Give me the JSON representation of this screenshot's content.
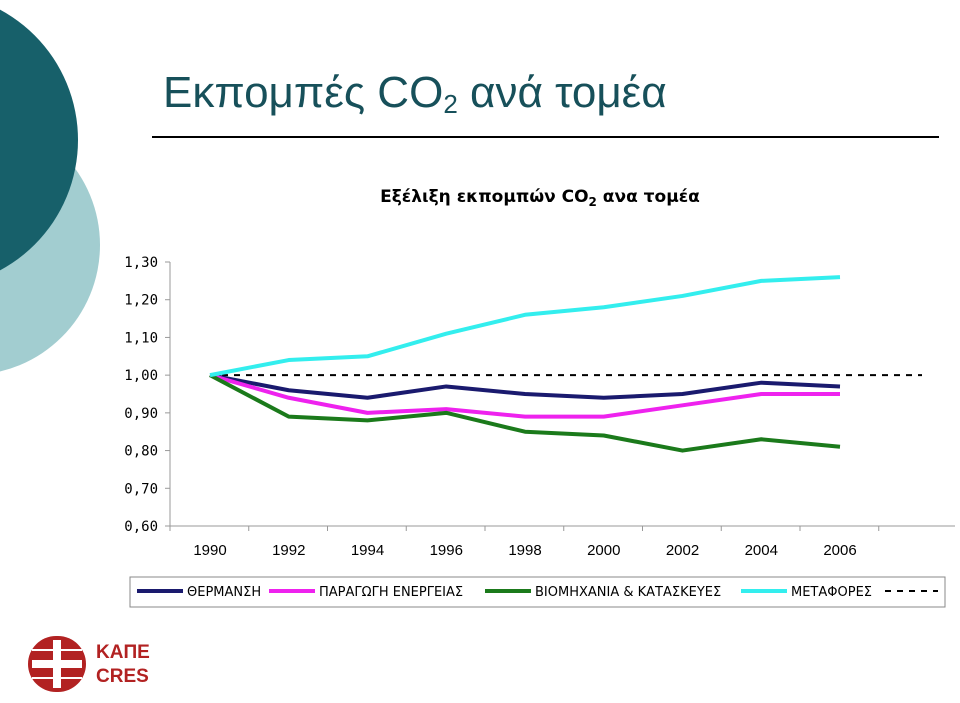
{
  "slide": {
    "title_main": "Εκπομπές CO",
    "title_sub": "2",
    "title_rest": " ανά τομέα"
  },
  "chart_data": {
    "type": "line",
    "title": "Εξέλιξη εκπομπών CO",
    "title_sub": "2",
    "title_rest": " ανα τομέα",
    "categories": [
      "1990",
      "1992",
      "1994",
      "1996",
      "1998",
      "2000",
      "2002",
      "2004",
      "2006"
    ],
    "ylim": [
      0.6,
      1.3
    ],
    "yticks": [
      "0,60",
      "0,70",
      "0,80",
      "0,90",
      "1,00",
      "1,10",
      "1,20",
      "1,30"
    ],
    "grid": false,
    "legend_position": "bottom",
    "series": [
      {
        "name": "ΘΕΡΜΑΝΣΗ",
        "color": "#1a1a6e",
        "style": "solid",
        "values": [
          1.0,
          0.96,
          0.94,
          0.97,
          0.95,
          0.94,
          0.95,
          0.98,
          0.97
        ]
      },
      {
        "name": "ΠΑΡΑΓΩΓΗ ΕΝΕΡΓΕΙΑΣ",
        "color": "#ee22ee",
        "style": "solid",
        "values": [
          1.0,
          0.94,
          0.9,
          0.91,
          0.89,
          0.89,
          0.92,
          0.95,
          0.95
        ]
      },
      {
        "name": "ΒΙΟΜΗΧΑΝΙΑ & ΚΑΤΑΣΚΕΥΕΣ",
        "color": "#1b7a1b",
        "style": "solid",
        "values": [
          1.0,
          0.89,
          0.88,
          0.9,
          0.85,
          0.84,
          0.8,
          0.83,
          0.81
        ]
      },
      {
        "name": "ΜΕΤΑΦΟΡΕΣ",
        "color": "#33eeee",
        "style": "solid",
        "values": [
          1.0,
          1.04,
          1.05,
          1.11,
          1.16,
          1.18,
          1.21,
          1.25,
          1.26
        ]
      },
      {
        "name": "",
        "color": "#000000",
        "style": "dashed",
        "reference": 1.0
      }
    ]
  },
  "logo": {
    "line1": "ΚΑΠΕ",
    "line2": "CRES",
    "color": "#b22222"
  }
}
